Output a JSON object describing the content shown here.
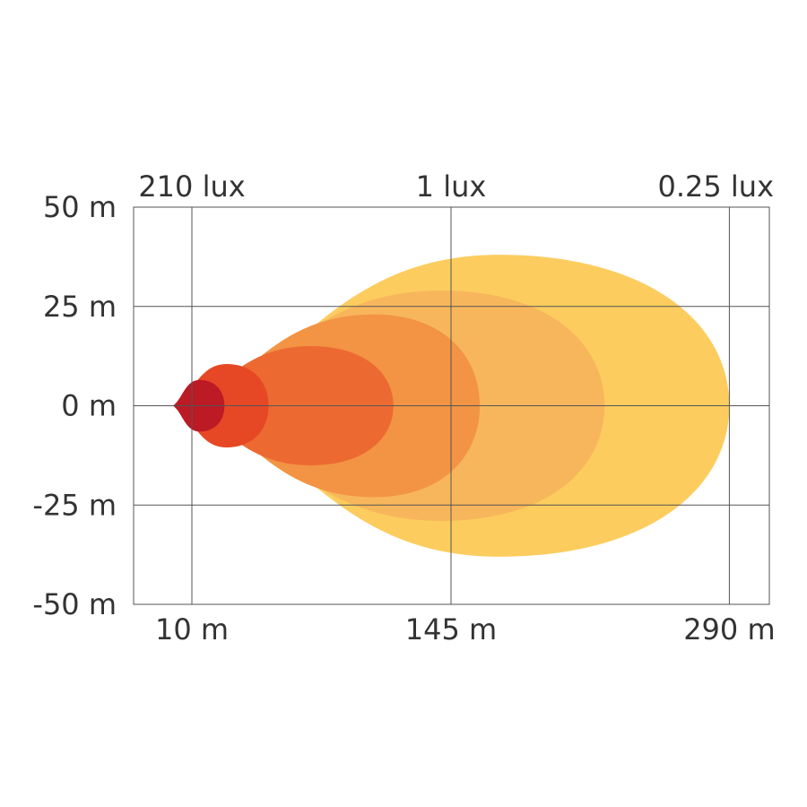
{
  "chart_data": {
    "type": "area",
    "title": "",
    "xlabel": "",
    "ylabel": "",
    "xlim": [
      -20,
      300
    ],
    "ylim": [
      -50,
      50
    ],
    "grid": true,
    "x_ticks": [
      {
        "value": 10,
        "label": "10 m"
      },
      {
        "value": 145,
        "label": "145 m"
      },
      {
        "value": 290,
        "label": "290 m"
      }
    ],
    "y_ticks": [
      {
        "value": 50,
        "label": "50 m"
      },
      {
        "value": 25,
        "label": "25 m"
      },
      {
        "value": 0,
        "label": "0 m"
      },
      {
        "value": -25,
        "label": "-25 m"
      },
      {
        "value": -50,
        "label": "-50 m"
      }
    ],
    "lux_labels": [
      {
        "value": 10,
        "label": "210 lux"
      },
      {
        "value": 145,
        "label": "1 lux"
      },
      {
        "value": 290,
        "label": "0.25 lux"
      }
    ],
    "series": [
      {
        "reach": 290,
        "half_width": 38,
        "peak_x": 170,
        "color": "#fccd5e"
      },
      {
        "reach": 225,
        "half_width": 29,
        "peak_x": 140,
        "color": "#f8b65c"
      },
      {
        "reach": 160,
        "half_width": 23,
        "peak_x": 105,
        "color": "#f29444"
      },
      {
        "reach": 115,
        "half_width": 15,
        "peak_x": 72,
        "color": "#ec6a32"
      },
      {
        "reach": 50,
        "half_width": 10.5,
        "peak_x": 28,
        "color": "#e64825"
      },
      {
        "reach": 27,
        "half_width": 6.5,
        "peak_x": 14,
        "color": "#bc1a25"
      }
    ]
  }
}
